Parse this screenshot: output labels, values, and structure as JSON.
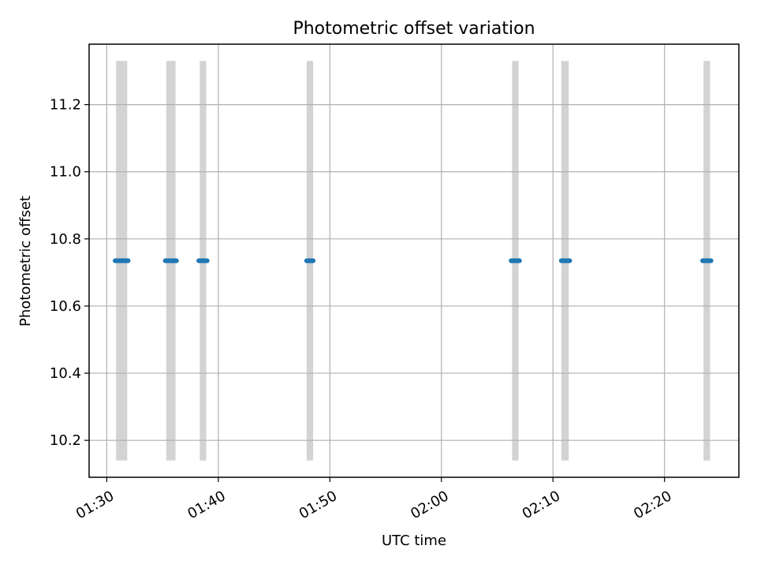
{
  "chart_data": {
    "type": "scatter",
    "title": "Photometric offset variation",
    "xlabel": "UTC time",
    "ylabel": "Photometric offset",
    "xlim": [
      "01:28:25",
      "02:26:40"
    ],
    "ylim": [
      10.09,
      11.38
    ],
    "x_ticks": [
      "01:30",
      "01:40",
      "01:50",
      "02:00",
      "02:10",
      "02:20"
    ],
    "y_ticks": [
      10.2,
      10.4,
      10.6,
      10.8,
      11.0,
      11.2
    ],
    "y_tick_labels": [
      "10.2",
      "10.4",
      "10.6",
      "10.8",
      "11.0",
      "11.2"
    ],
    "grid": true,
    "x_tick_rotation_deg": 30,
    "colors": {
      "points": "#1f77b4",
      "bands": "#d3d3d3",
      "grid": "#b0b0b0"
    },
    "bands": [
      {
        "start": "01:30:50",
        "end": "01:31:50",
        "ymin": 10.14,
        "ymax": 11.33
      },
      {
        "start": "01:35:20",
        "end": "01:36:10",
        "ymin": 10.14,
        "ymax": 11.33
      },
      {
        "start": "01:38:20",
        "end": "01:38:55",
        "ymin": 10.14,
        "ymax": 11.33
      },
      {
        "start": "01:47:55",
        "end": "01:48:30",
        "ymin": 10.14,
        "ymax": 11.33
      },
      {
        "start": "02:06:20",
        "end": "02:06:55",
        "ymin": 10.14,
        "ymax": 11.33
      },
      {
        "start": "02:10:45",
        "end": "02:11:25",
        "ymin": 10.14,
        "ymax": 11.33
      },
      {
        "start": "02:23:30",
        "end": "02:24:05",
        "ymin": 10.14,
        "ymax": 11.33
      }
    ],
    "series": [
      {
        "points": [
          {
            "start": "01:30:45",
            "end": "01:31:55",
            "y": 10.735
          },
          {
            "start": "01:35:15",
            "end": "01:36:15",
            "y": 10.735
          },
          {
            "start": "01:38:15",
            "end": "01:39:00",
            "y": 10.735
          },
          {
            "start": "01:47:55",
            "end": "01:48:30",
            "y": 10.735
          },
          {
            "start": "02:06:15",
            "end": "02:07:00",
            "y": 10.735
          },
          {
            "start": "02:10:45",
            "end": "02:11:30",
            "y": 10.735
          },
          {
            "start": "02:23:25",
            "end": "02:24:10",
            "y": 10.735
          }
        ]
      }
    ]
  }
}
